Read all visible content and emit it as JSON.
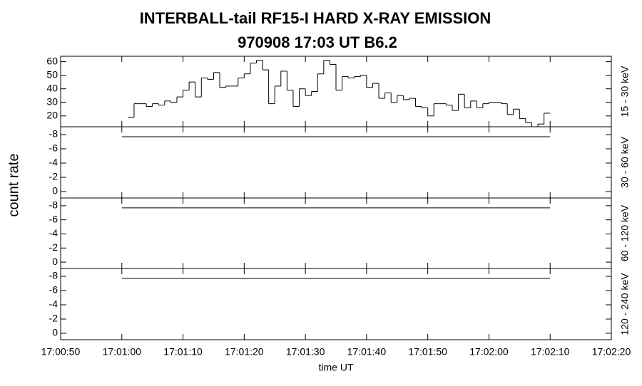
{
  "title": [
    "INTERBALL-tail  RF15-I  HARD  X-RAY  EMISSION",
    "970908     17:03 UT     B6.2"
  ],
  "y_label": "count rate",
  "x_label": "time UT",
  "xlim": [
    "17:00:50",
    "17:02:20"
  ],
  "xticks": [
    "17:00:50",
    "17:01:00",
    "17:01:10",
    "17:01:20",
    "17:01:30",
    "17:01:40",
    "17:01:50",
    "17:02:00",
    "17:02:10",
    "17:02:20"
  ],
  "chart_data": [
    {
      "type": "histogram",
      "panel_label": "15 - 30 keV",
      "color": "#000000",
      "bins": [
        "17:01:01",
        "17:01:02",
        "17:01:03",
        "17:01:04",
        "17:01:05",
        "17:01:06",
        "17:01:07",
        "17:01:08",
        "17:01:09",
        "17:01:10",
        "17:01:11",
        "17:01:12",
        "17:01:13",
        "17:01:14",
        "17:01:15",
        "17:01:16",
        "17:01:17",
        "17:01:18",
        "17:01:19",
        "17:01:20",
        "17:01:21",
        "17:01:22",
        "17:01:23",
        "17:01:24",
        "17:01:25",
        "17:01:26",
        "17:01:27",
        "17:01:28",
        "17:01:29",
        "17:01:30",
        "17:01:31",
        "17:01:32",
        "17:01:33",
        "17:01:34",
        "17:01:35",
        "17:01:36",
        "17:01:37",
        "17:01:38",
        "17:01:39",
        "17:01:40",
        "17:01:41",
        "17:01:42",
        "17:01:43",
        "17:01:44",
        "17:01:45",
        "17:01:46",
        "17:01:47",
        "17:01:48",
        "17:01:49",
        "17:01:50",
        "17:01:51",
        "17:01:52",
        "17:01:53",
        "17:01:54",
        "17:01:55",
        "17:01:56",
        "17:01:57",
        "17:01:58",
        "17:01:59",
        "17:02:00",
        "17:02:01",
        "17:02:02",
        "17:02:03",
        "17:02:04",
        "17:02:05",
        "17:02:06",
        "17:02:07",
        "17:02:08",
        "17:02:09",
        "17:02:10"
      ],
      "values": [
        19,
        29,
        29,
        27,
        29,
        28,
        31,
        30,
        34,
        39,
        45,
        34,
        48,
        47,
        52,
        41,
        42,
        42,
        48,
        51,
        59,
        61,
        54,
        29,
        42,
        53,
        39,
        27,
        40,
        35,
        38,
        51,
        61,
        58,
        39,
        49,
        48,
        49,
        50,
        41,
        44,
        33,
        37,
        30,
        35,
        32,
        33,
        27,
        26,
        20,
        29,
        29,
        28,
        24,
        36,
        26,
        31,
        26,
        29,
        30,
        30,
        29,
        21,
        25,
        18,
        15,
        12,
        14,
        22
      ],
      "ylim": [
        12,
        64
      ],
      "yticks": [
        20,
        30,
        40,
        50,
        60
      ]
    },
    {
      "type": "line",
      "panel_label": "30 - 60 keV",
      "color": "#000000",
      "x": [
        "17:01:00",
        "17:02:10"
      ],
      "values": [
        -7.7,
        -7.7
      ],
      "ylim": [
        0.9,
        -9.1
      ],
      "yticks": [
        -8,
        -6,
        -4,
        -2,
        0
      ]
    },
    {
      "type": "line",
      "panel_label": "60 - 120 keV",
      "color": "#000000",
      "x": [
        "17:01:00",
        "17:02:10"
      ],
      "values": [
        -7.7,
        -7.7
      ],
      "ylim": [
        0.9,
        -9.1
      ],
      "yticks": [
        -8,
        -6,
        -4,
        -2,
        0
      ]
    },
    {
      "type": "line",
      "panel_label": "120 - 240 keV",
      "color": "#000000",
      "x": [
        "17:01:00",
        "17:02:10"
      ],
      "values": [
        -7.7,
        -7.7
      ],
      "ylim": [
        0.9,
        -9.1
      ],
      "yticks": [
        -8,
        -6,
        -4,
        -2,
        0
      ]
    }
  ]
}
